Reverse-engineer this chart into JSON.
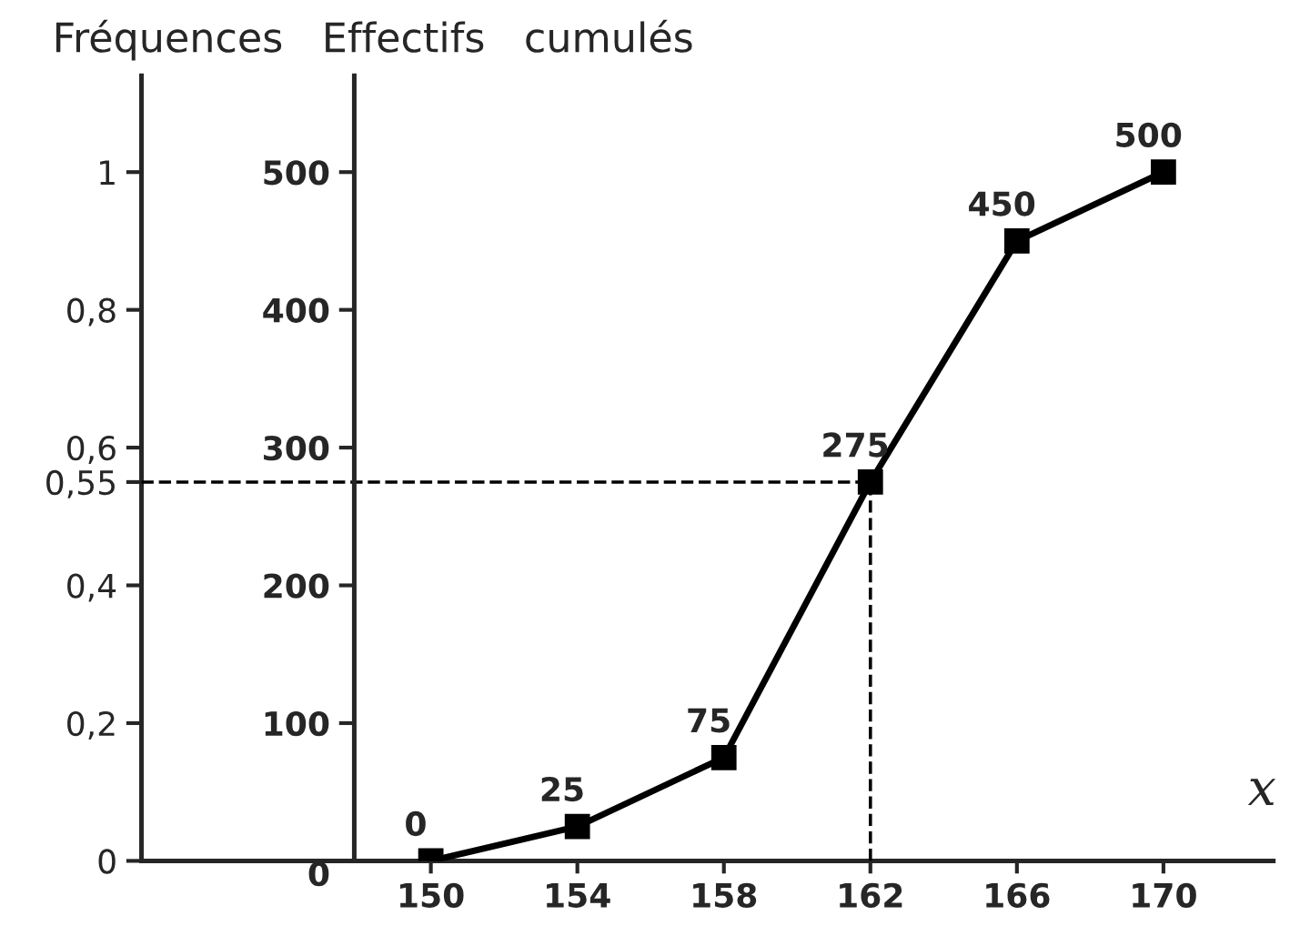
{
  "chart_data": {
    "type": "line",
    "title": "Fréquences   Effectifs   cumulés",
    "xlabel": "x",
    "x": [
      150,
      154,
      158,
      162,
      166,
      170
    ],
    "series": [
      {
        "color": "#000000",
        "axis": "y2",
        "values": [
          0,
          25,
          75,
          275,
          450,
          500
        ]
      }
    ],
    "xlim": [
      142.1,
      173
    ],
    "xticks": [
      150,
      154,
      158,
      162,
      166,
      170
    ],
    "ylim": [
      0,
      1.14
    ],
    "yticks": [
      0,
      {
        "value": 0.2,
        "label": "0,2"
      },
      {
        "value": 0.4,
        "label": "0,4"
      },
      {
        "value": 0.55,
        "label": "0,55"
      },
      {
        "value": 0.6,
        "label": "0,6"
      },
      {
        "value": 0.8,
        "label": "0,8"
      },
      1
    ],
    "y2lim": [
      0,
      570
    ],
    "y2ticks": [
      0,
      100,
      200,
      300,
      400,
      500
    ],
    "ref_lines": [
      {
        "axis": "x",
        "value": 162,
        "line_style": "dashed"
      },
      {
        "axis": "y2",
        "value": 275,
        "line_style": "dashed"
      }
    ],
    "data_labels": true,
    "marker": "square",
    "line_style": "solid",
    "grid": false,
    "legend": false
  }
}
